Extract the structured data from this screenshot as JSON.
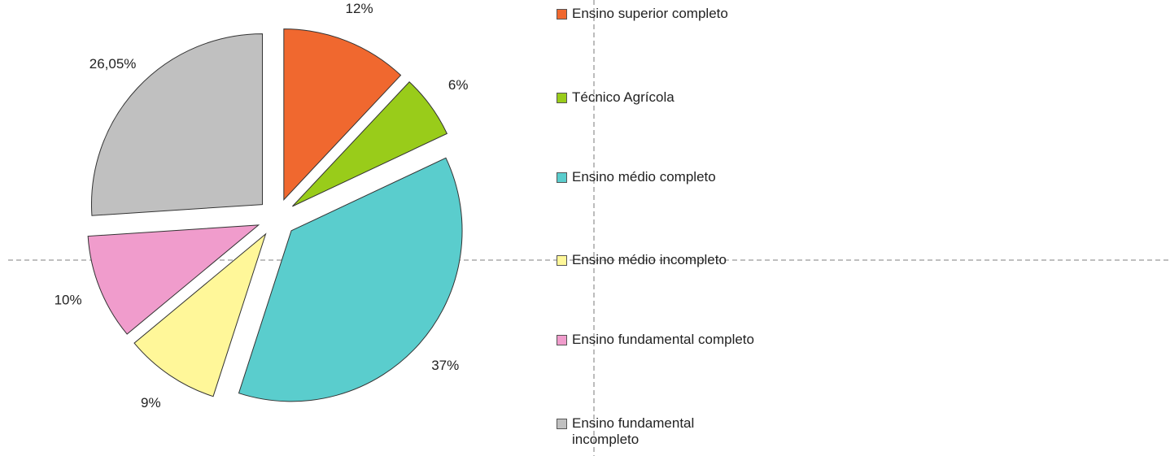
{
  "chart_data": {
    "type": "pie",
    "categories": [
      "Ensino superior completo",
      "Técnico Agrícola",
      "Ensino médio completo",
      "Ensino médio incompleto",
      "Ensino fundamental completo",
      "Ensino fundamental incompleto"
    ],
    "values": [
      12,
      6,
      37,
      9,
      10,
      26.05
    ],
    "value_labels": [
      "12%",
      "6%",
      "37%",
      "9%",
      "10%",
      "26,05%"
    ],
    "colors": [
      "#f0682f",
      "#99cc1a",
      "#5acdcd",
      "#fff799",
      "#f09ccc",
      "#c0c0c0"
    ]
  }
}
